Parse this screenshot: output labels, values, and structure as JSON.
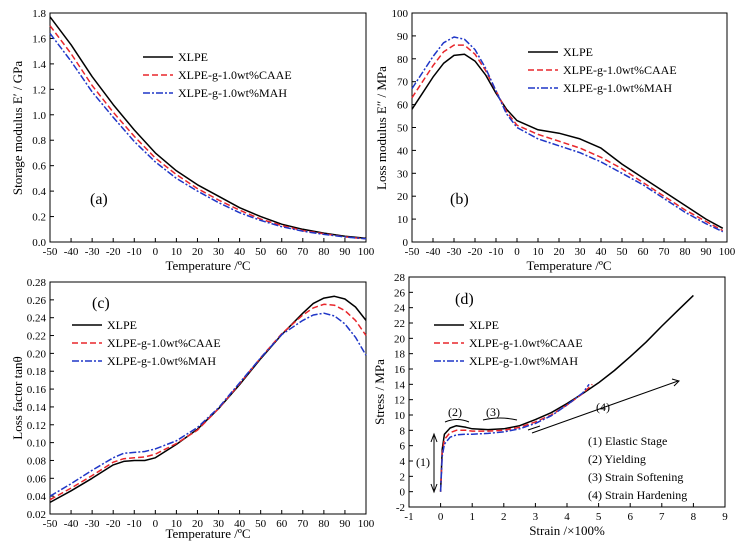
{
  "chart_data": [
    {
      "type": "line",
      "panel_label": "(a)",
      "xlabel": "Temperature /ºC",
      "ylabel": "Storage modulus E′ / GPa",
      "xlim": [
        -50,
        100
      ],
      "ylim": [
        0,
        1.8
      ],
      "xticks": [
        -50,
        -40,
        -30,
        -20,
        -10,
        0,
        10,
        20,
        30,
        40,
        50,
        60,
        70,
        80,
        90,
        100
      ],
      "yticks": [
        "0.0",
        "0.2",
        "0.4",
        "0.6",
        "0.8",
        "1.0",
        "1.2",
        "1.4",
        "1.6",
        "1.8"
      ],
      "legend_position": "top-center",
      "series": [
        {
          "name": "XLPE",
          "color": "#000000",
          "dash": "solid",
          "x": [
            -50,
            -40,
            -30,
            -20,
            -10,
            0,
            10,
            20,
            30,
            40,
            50,
            60,
            70,
            80,
            90,
            100
          ],
          "y": [
            1.77,
            1.55,
            1.3,
            1.08,
            0.88,
            0.7,
            0.56,
            0.45,
            0.36,
            0.27,
            0.2,
            0.14,
            0.1,
            0.07,
            0.045,
            0.03
          ]
        },
        {
          "name": "XLPE-g-1.0wt%CAAE",
          "color": "#e8262b",
          "dash": "dash",
          "x": [
            -50,
            -40,
            -30,
            -20,
            -10,
            0,
            10,
            20,
            30,
            40,
            50,
            60,
            70,
            80,
            90,
            100
          ],
          "y": [
            1.7,
            1.48,
            1.23,
            1.02,
            0.83,
            0.66,
            0.53,
            0.42,
            0.33,
            0.25,
            0.18,
            0.13,
            0.09,
            0.065,
            0.04,
            0.025
          ]
        },
        {
          "name": "XLPE-g-1.0wt%MAH",
          "color": "#1f36c7",
          "dash": "dashdot",
          "x": [
            -50,
            -40,
            -30,
            -20,
            -10,
            0,
            10,
            20,
            30,
            40,
            50,
            60,
            70,
            80,
            90,
            100
          ],
          "y": [
            1.64,
            1.42,
            1.18,
            0.98,
            0.79,
            0.63,
            0.5,
            0.4,
            0.31,
            0.23,
            0.17,
            0.12,
            0.085,
            0.06,
            0.04,
            0.025
          ]
        }
      ]
    },
    {
      "type": "line",
      "panel_label": "(b)",
      "xlabel": "Temperature /ºC",
      "ylabel": "Loss modulus E″ / MPa",
      "xlim": [
        -50,
        100
      ],
      "ylim": [
        0,
        100
      ],
      "xticks": [
        -50,
        -40,
        -30,
        -20,
        -10,
        0,
        10,
        20,
        30,
        40,
        50,
        60,
        70,
        80,
        90,
        100
      ],
      "yticks": [
        0,
        10,
        20,
        30,
        40,
        50,
        60,
        70,
        80,
        90,
        100
      ],
      "legend_position": "top-right",
      "series": [
        {
          "name": "XLPE",
          "color": "#000000",
          "dash": "solid",
          "x": [
            -50,
            -45,
            -40,
            -35,
            -30,
            -25,
            -20,
            -15,
            -10,
            -5,
            0,
            10,
            20,
            30,
            40,
            50,
            60,
            70,
            80,
            90,
            98
          ],
          "y": [
            58,
            65,
            72,
            78,
            81.5,
            82,
            79,
            73,
            65,
            58,
            53,
            49,
            47.5,
            45,
            41,
            34,
            28,
            22,
            16,
            10,
            6
          ]
        },
        {
          "name": "XLPE-g-1.0wt%CAAE",
          "color": "#e8262b",
          "dash": "dash",
          "x": [
            -50,
            -45,
            -40,
            -35,
            -30,
            -25,
            -20,
            -15,
            -10,
            -5,
            0,
            10,
            20,
            30,
            40,
            50,
            60,
            70,
            80,
            90,
            98
          ],
          "y": [
            63,
            70,
            77,
            83,
            86,
            86,
            82,
            75,
            66,
            57,
            51,
            47,
            44,
            41,
            37,
            32,
            26,
            20,
            14,
            9,
            5
          ]
        },
        {
          "name": "XLPE-g-1.0wt%MAH",
          "color": "#1f36c7",
          "dash": "dashdot",
          "x": [
            -50,
            -45,
            -40,
            -35,
            -30,
            -25,
            -20,
            -15,
            -10,
            -5,
            0,
            10,
            20,
            30,
            40,
            50,
            60,
            70,
            80,
            90,
            98
          ],
          "y": [
            67,
            74,
            81,
            87,
            89.5,
            88.5,
            84,
            76,
            66,
            56,
            50,
            45,
            42,
            39,
            35,
            30,
            25,
            19,
            13,
            8,
            4.5
          ]
        }
      ]
    },
    {
      "type": "line",
      "panel_label": "(c)",
      "xlabel": "Temperature /ºC",
      "ylabel": "Loss factor tanθ",
      "xlim": [
        -50,
        100
      ],
      "ylim": [
        0.02,
        0.28
      ],
      "xticks": [
        -50,
        -40,
        -30,
        -20,
        -10,
        0,
        10,
        20,
        30,
        40,
        50,
        60,
        70,
        80,
        90,
        100
      ],
      "yticks": [
        "0.02",
        "0.04",
        "0.06",
        "0.08",
        "0.10",
        "0.12",
        "0.14",
        "0.16",
        "0.18",
        "0.20",
        "0.22",
        "0.24",
        "0.26",
        "0.28"
      ],
      "legend_position": "center-left",
      "series": [
        {
          "name": "XLPE",
          "color": "#000000",
          "dash": "solid",
          "x": [
            -50,
            -40,
            -30,
            -20,
            -15,
            -10,
            -5,
            0,
            10,
            20,
            30,
            40,
            50,
            60,
            70,
            75,
            80,
            85,
            90,
            95,
            100
          ],
          "y": [
            0.033,
            0.046,
            0.06,
            0.075,
            0.079,
            0.08,
            0.08,
            0.083,
            0.098,
            0.115,
            0.138,
            0.165,
            0.194,
            0.221,
            0.245,
            0.256,
            0.262,
            0.264,
            0.261,
            0.252,
            0.237
          ]
        },
        {
          "name": "XLPE-g-1.0wt%CAAE",
          "color": "#e8262b",
          "dash": "dash",
          "x": [
            -50,
            -40,
            -30,
            -20,
            -15,
            -10,
            -5,
            0,
            10,
            20,
            30,
            40,
            50,
            60,
            70,
            75,
            80,
            85,
            90,
            95,
            100
          ],
          "y": [
            0.036,
            0.049,
            0.063,
            0.078,
            0.082,
            0.083,
            0.084,
            0.087,
            0.099,
            0.114,
            0.138,
            0.166,
            0.195,
            0.222,
            0.243,
            0.251,
            0.255,
            0.254,
            0.248,
            0.237,
            0.22
          ]
        },
        {
          "name": "XLPE-g-1.0wt%MAH",
          "color": "#1f36c7",
          "dash": "dashdot",
          "x": [
            -50,
            -40,
            -30,
            -20,
            -15,
            -10,
            -5,
            0,
            10,
            20,
            30,
            40,
            50,
            60,
            70,
            75,
            80,
            85,
            90,
            95,
            100
          ],
          "y": [
            0.04,
            0.054,
            0.069,
            0.083,
            0.088,
            0.089,
            0.09,
            0.093,
            0.102,
            0.117,
            0.139,
            0.167,
            0.195,
            0.221,
            0.237,
            0.243,
            0.245,
            0.242,
            0.233,
            0.218,
            0.198
          ]
        }
      ]
    },
    {
      "type": "line",
      "panel_label": "(d)",
      "xlabel": "Strain /×100%",
      "ylabel": "Stress / MPa",
      "xlim": [
        -1,
        9
      ],
      "ylim": [
        -2,
        28
      ],
      "xticks": [
        -1,
        0,
        1,
        2,
        3,
        4,
        5,
        6,
        7,
        8,
        9
      ],
      "yticks": [
        -2,
        0,
        2,
        4,
        6,
        8,
        10,
        12,
        14,
        16,
        18,
        20,
        22,
        24,
        26,
        28
      ],
      "legend_position": "top-left",
      "series": [
        {
          "name": "XLPE",
          "color": "#000000",
          "dash": "solid",
          "x": [
            0,
            0.05,
            0.12,
            0.3,
            0.5,
            0.8,
            1.0,
            1.5,
            2.0,
            2.5,
            3.0,
            3.5,
            4.0,
            4.5,
            5.0,
            5.5,
            6.0,
            6.5,
            7.0,
            7.5,
            8.0
          ],
          "y": [
            0,
            5.5,
            7.5,
            8.3,
            8.6,
            8.4,
            8.2,
            8.1,
            8.2,
            8.6,
            9.4,
            10.3,
            11.5,
            12.8,
            14.2,
            15.8,
            17.6,
            19.5,
            21.6,
            23.6,
            25.6
          ]
        },
        {
          "name": "XLPE-g-1.0wt%CAAE",
          "color": "#e8262b",
          "dash": "dash",
          "x": [
            0,
            0.05,
            0.12,
            0.3,
            0.5,
            0.8,
            1.0,
            1.5,
            2.0,
            2.5,
            3.0,
            3.5,
            4.0,
            4.5,
            4.8
          ],
          "y": [
            0,
            5.0,
            6.8,
            7.7,
            8.0,
            8.0,
            7.9,
            7.9,
            8.0,
            8.4,
            9.1,
            10.0,
            11.3,
            12.8,
            14.0
          ]
        },
        {
          "name": "XLPE-g-1.0wt%MAH",
          "color": "#1f36c7",
          "dash": "dashdot",
          "x": [
            0,
            0.05,
            0.12,
            0.3,
            0.5,
            0.8,
            1.0,
            1.5,
            2.0,
            2.5,
            3.0,
            3.5,
            4.0,
            4.5,
            4.7
          ],
          "y": [
            0,
            4.6,
            6.2,
            7.1,
            7.4,
            7.5,
            7.5,
            7.6,
            7.8,
            8.2,
            8.9,
            9.9,
            11.3,
            12.9,
            14.0
          ]
        }
      ],
      "annotations": {
        "stage1": "(1)",
        "stage2": "(2)",
        "stage3": "(3)",
        "stage4": "(4)",
        "legend_stage1": "(1) Elastic Stage",
        "legend_stage2": "(2) Yielding",
        "legend_stage3": "(3) Strain Softening",
        "legend_stage4": "(4) Strain Hardening"
      }
    }
  ]
}
